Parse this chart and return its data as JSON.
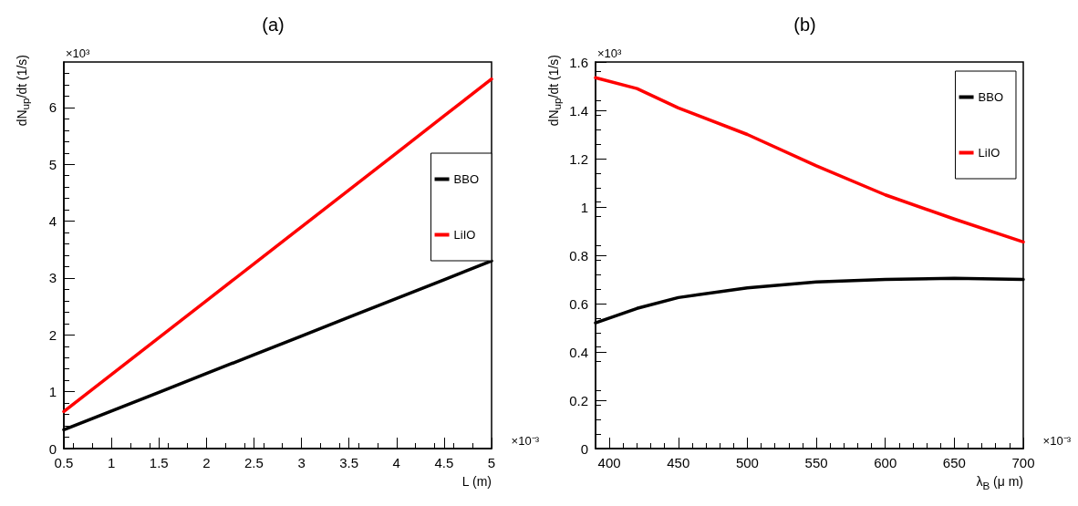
{
  "chart_data": [
    {
      "type": "line",
      "title": "(a)",
      "xlabel": "L (m)",
      "ylabel": "dN$_{up}$/dt (1/s)",
      "x": [
        0.5,
        1,
        1.5,
        2,
        2.5,
        3,
        3.5,
        4,
        4.5,
        5
      ],
      "series": [
        {
          "name": "BBO",
          "color": "#000000",
          "values": [
            0.33,
            0.66,
            0.99,
            1.32,
            1.65,
            1.98,
            2.31,
            2.64,
            2.97,
            3.3
          ]
        },
        {
          "name": "LiIO",
          "color": "#ff0000",
          "values": [
            0.65,
            1.3,
            1.95,
            2.6,
            3.25,
            3.9,
            4.55,
            5.2,
            5.85,
            6.5
          ]
        }
      ],
      "xlim": [
        0.5,
        5
      ],
      "xticks": [
        0.5,
        1,
        1.5,
        2,
        2.5,
        3,
        3.5,
        4,
        4.5,
        5
      ],
      "ylim": [
        0,
        6.8
      ],
      "yticks": [
        0,
        1,
        2,
        3,
        4,
        5,
        6
      ],
      "annotations": [
        "×10³",
        "×10⁻³"
      ],
      "legend": "right",
      "grid": false,
      "marker": "none",
      "line_style": "solid"
    },
    {
      "type": "line",
      "title": "(b)",
      "xlabel": "λ$_{B}$ (μ m)",
      "ylabel": "dN$_{up}$/dt (1/s)",
      "x": [
        390,
        420,
        450,
        500,
        550,
        600,
        650,
        700
      ],
      "series": [
        {
          "name": "BBO",
          "color": "#000000",
          "values": [
            0.52,
            0.58,
            0.625,
            0.665,
            0.69,
            0.7,
            0.705,
            0.7
          ]
        },
        {
          "name": "LiIO",
          "color": "#ff0000",
          "values": [
            1.535,
            1.49,
            1.41,
            1.3,
            1.17,
            1.05,
            0.95,
            0.855
          ]
        }
      ],
      "xlim": [
        390,
        700
      ],
      "xticks": [
        400,
        450,
        500,
        550,
        600,
        650,
        700
      ],
      "ylim": [
        0,
        1.6
      ],
      "yticks": [
        0,
        0.2,
        0.4,
        0.6,
        0.8,
        1,
        1.2,
        1.4,
        1.6
      ],
      "annotations": [
        "×10³",
        "×10⁻³"
      ],
      "legend": "top right",
      "grid": false,
      "marker": "none",
      "line_style": "solid"
    }
  ]
}
